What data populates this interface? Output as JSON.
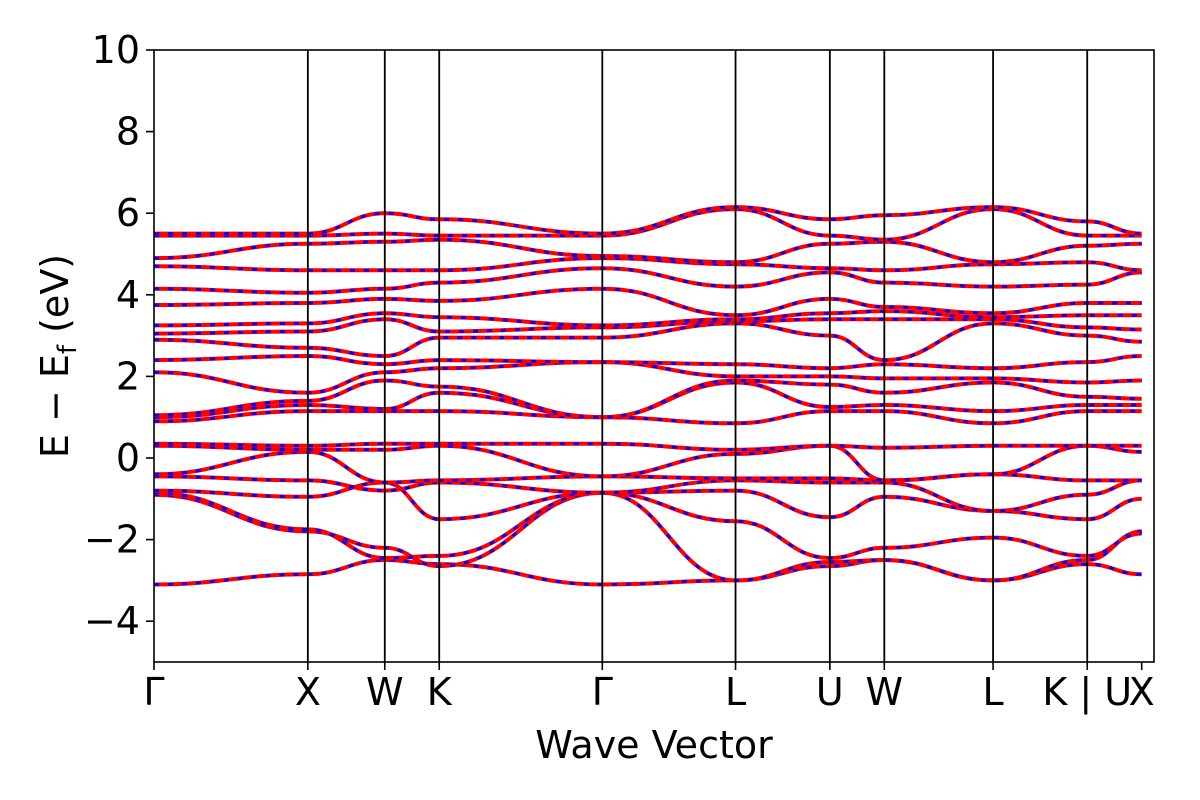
{
  "chart_data": {
    "type": "line",
    "xlabel": "Wave Vector",
    "ylabel_parts": {
      "main": "E − E",
      "sub": "f",
      "unit": " (eV)"
    },
    "ylim": [
      -5,
      10
    ],
    "yticks": [
      -4,
      -2,
      0,
      2,
      4,
      6,
      8,
      10
    ],
    "xlim": [
      0,
      6.5
    ],
    "kpoints": [
      {
        "label": "Γ",
        "x": 0.0
      },
      {
        "label": "X",
        "x": 1.0
      },
      {
        "label": "W",
        "x": 1.5
      },
      {
        "label": "K",
        "x": 1.854
      },
      {
        "label": "Γ",
        "x": 2.914
      },
      {
        "label": "L",
        "x": 3.78
      },
      {
        "label": "U",
        "x": 4.393
      },
      {
        "label": "W",
        "x": 4.747
      },
      {
        "label": "L",
        "x": 5.454
      },
      {
        "label": "K | U",
        "x": 6.066
      },
      {
        "label": "X",
        "x": 6.42
      }
    ],
    "colors": {
      "bands_a": "#ff0000",
      "bands_b": "#0000ff",
      "vlines": "#000000",
      "frame": "#000000"
    },
    "series": [
      {
        "values": [
          -3.1,
          -2.85,
          -2.5,
          -2.6,
          -3.1,
          -3.0,
          -2.65,
          -2.5,
          -3.0,
          -2.6,
          -2.85
        ]
      },
      {
        "values": [
          -0.9,
          -1.8,
          -2.2,
          -2.65,
          -0.85,
          -3.0,
          -2.55,
          -2.5,
          -3.0,
          -2.5,
          -1.8
        ]
      },
      {
        "values": [
          -0.85,
          -1.75,
          -2.45,
          -2.4,
          -0.85,
          -1.55,
          -2.45,
          -2.2,
          -1.95,
          -2.4,
          -1.85
        ]
      },
      {
        "values": [
          -0.8,
          -0.95,
          -0.6,
          -1.5,
          -0.85,
          -0.8,
          -1.45,
          -0.95,
          -1.3,
          -1.5,
          -1.0
        ]
      },
      {
        "values": [
          -0.45,
          -0.55,
          -0.8,
          -0.6,
          -0.85,
          -0.55,
          -0.6,
          -0.6,
          -1.3,
          -0.9,
          -0.55
        ]
      },
      {
        "values": [
          -0.4,
          0.15,
          -0.6,
          -0.55,
          -0.45,
          -0.5,
          -0.5,
          -0.55,
          -0.4,
          -0.55,
          -0.55
        ]
      },
      {
        "values": [
          0.3,
          0.2,
          0.2,
          0.3,
          -0.45,
          0.1,
          0.3,
          -0.55,
          -0.4,
          0.3,
          0.15
        ]
      },
      {
        "values": [
          0.35,
          0.3,
          0.35,
          0.35,
          0.35,
          0.2,
          0.3,
          0.25,
          0.3,
          0.3,
          0.3
        ]
      },
      {
        "values": [
          0.9,
          1.15,
          1.15,
          1.15,
          1.0,
          0.85,
          1.15,
          1.15,
          0.85,
          1.15,
          1.15
        ]
      },
      {
        "values": [
          1.0,
          1.3,
          1.2,
          1.6,
          1.0,
          1.85,
          1.25,
          1.3,
          1.15,
          1.3,
          1.3
        ]
      },
      {
        "values": [
          1.05,
          1.4,
          1.9,
          1.75,
          1.0,
          1.9,
          1.8,
          1.6,
          1.85,
          1.5,
          1.45
        ]
      },
      {
        "values": [
          2.1,
          1.6,
          2.1,
          2.2,
          2.35,
          2.0,
          2.0,
          1.95,
          1.95,
          1.85,
          1.9
        ]
      },
      {
        "values": [
          2.4,
          2.5,
          2.3,
          2.4,
          2.35,
          2.3,
          2.2,
          2.3,
          2.2,
          2.35,
          2.5
        ]
      },
      {
        "values": [
          2.9,
          2.7,
          2.5,
          2.95,
          2.95,
          3.3,
          3.0,
          2.4,
          3.3,
          3.0,
          2.85
        ]
      },
      {
        "values": [
          3.05,
          3.1,
          3.4,
          3.1,
          3.2,
          3.35,
          3.4,
          3.4,
          3.4,
          3.2,
          3.15
        ]
      },
      {
        "values": [
          3.25,
          3.3,
          3.55,
          3.45,
          3.25,
          3.4,
          3.55,
          3.6,
          3.45,
          3.5,
          3.5
        ]
      },
      {
        "values": [
          3.75,
          3.8,
          3.9,
          3.85,
          4.15,
          3.5,
          3.9,
          3.7,
          3.55,
          3.8,
          3.8
        ]
      },
      {
        "values": [
          4.15,
          4.05,
          4.15,
          4.3,
          4.65,
          4.2,
          4.55,
          4.3,
          4.2,
          4.25,
          4.55
        ]
      },
      {
        "values": [
          4.7,
          4.6,
          4.6,
          4.6,
          4.9,
          4.75,
          4.65,
          4.6,
          4.75,
          4.8,
          4.6
        ]
      },
      {
        "values": [
          4.9,
          5.25,
          5.3,
          5.35,
          4.95,
          4.8,
          5.25,
          5.3,
          4.8,
          5.2,
          5.25
        ]
      },
      {
        "values": [
          5.45,
          5.45,
          5.5,
          5.45,
          5.45,
          6.1,
          5.45,
          5.35,
          6.1,
          5.45,
          5.45
        ]
      },
      {
        "values": [
          5.5,
          5.5,
          6.0,
          5.85,
          5.5,
          6.15,
          5.85,
          5.95,
          6.15,
          5.8,
          5.5
        ]
      }
    ]
  }
}
